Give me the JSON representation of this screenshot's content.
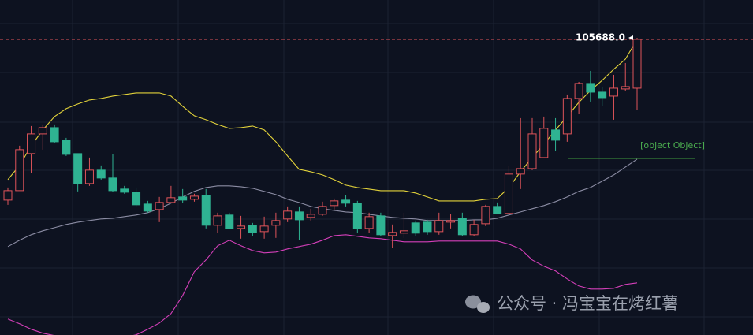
{
  "chart_data": {
    "type": "candlestick",
    "ylim": [
      99534,
      106508
    ],
    "up_color": "#e0545a",
    "down_color": "#2fb392",
    "open": [
      102342,
      102539,
      103310,
      103720,
      103851,
      103589,
      103310,
      102687,
      102966,
      102802,
      102572,
      102506,
      102260,
      102146,
      102293,
      102408,
      102359,
      102441,
      101818,
      102031,
      101752,
      101818,
      101686,
      101818,
      101949,
      102096,
      101982,
      102047,
      102228,
      102342,
      102277,
      101752,
      102014,
      101604,
      101654,
      101867,
      101883,
      101686,
      101883,
      101965,
      101621,
      101850,
      102211,
      102064,
      102884,
      102998,
      103228,
      103802,
      103720,
      104458,
      104770,
      104589,
      104507,
      104655,
      104671
    ],
    "high": [
      102605,
      103474,
      103884,
      103917,
      103917,
      103638,
      103310,
      103228,
      103064,
      103294,
      102638,
      102605,
      102326,
      102408,
      102638,
      102572,
      102474,
      102572,
      102080,
      102080,
      102014,
      101867,
      101998,
      102080,
      102211,
      102211,
      102162,
      102310,
      102375,
      102441,
      102326,
      102080,
      102080,
      101834,
      102080,
      101916,
      101932,
      102080,
      102047,
      102080,
      101932,
      102244,
      102293,
      103064,
      104048,
      104048,
      104081,
      104048,
      104540,
      104802,
      105032,
      104704,
      104950,
      105196,
      105721
    ],
    "low": [
      102244,
      102539,
      102900,
      103392,
      103523,
      103261,
      102523,
      102638,
      102769,
      102506,
      102474,
      102211,
      102080,
      101883,
      102277,
      102277,
      102310,
      101752,
      101654,
      101752,
      101539,
      101588,
      101539,
      101555,
      101883,
      101506,
      101916,
      102014,
      102146,
      102211,
      101654,
      101654,
      101588,
      101342,
      101555,
      101588,
      101621,
      101621,
      101752,
      101588,
      101588,
      101801,
      102047,
      102064,
      102572,
      102966,
      103228,
      103359,
      103556,
      104130,
      104392,
      104294,
      104015,
      104622,
      104212
    ],
    "close": [
      102539,
      103392,
      103720,
      103851,
      103556,
      103294,
      102687,
      102966,
      102802,
      102539,
      102506,
      102244,
      102113,
      102293,
      102392,
      102342,
      102424,
      101818,
      102014,
      101752,
      101801,
      101670,
      101801,
      101916,
      102113,
      101932,
      102047,
      102211,
      102326,
      102277,
      101752,
      101998,
      101621,
      101670,
      101703,
      101654,
      101686,
      101916,
      101916,
      101621,
      101834,
      102211,
      102064,
      102884,
      102998,
      103720,
      103835,
      103589,
      104458,
      104770,
      104589,
      104474,
      104671,
      104704,
      105688
    ],
    "lines": [
      {
        "color": "#e3d33a",
        "values": [
          102769,
          103064,
          103474,
          103802,
          104081,
          104245,
          104343,
          104425,
          104458,
          104507,
          104540,
          104573,
          104573,
          104573,
          104507,
          104294,
          104097,
          104015,
          103917,
          103835,
          103851,
          103884,
          103802,
          103556,
          103261,
          102982,
          102933,
          102867,
          102769,
          102654,
          102605,
          102572,
          102539,
          102539,
          102539,
          102490,
          102408,
          102326,
          102326,
          102326,
          102326,
          102359,
          102375,
          102605,
          102933,
          103228,
          103507,
          103802,
          104081,
          104376,
          104622,
          104835,
          105065,
          105278,
          105688
        ]
      },
      {
        "color": "#8b8ca3",
        "values": [
          101375,
          101506,
          101621,
          101703,
          101768,
          101834,
          101883,
          101916,
          101949,
          101965,
          101998,
          102031,
          102080,
          102162,
          102277,
          102408,
          102523,
          102605,
          102638,
          102638,
          102621,
          102588,
          102523,
          102457,
          102359,
          102293,
          102211,
          102162,
          102129,
          102096,
          102080,
          102047,
          102014,
          101982,
          101965,
          101949,
          101916,
          101916,
          101916,
          101916,
          101932,
          101932,
          101965,
          102031,
          102096,
          102162,
          102228,
          102310,
          102408,
          102523,
          102605,
          102736,
          102867,
          103031,
          103195
        ]
      },
      {
        "color": "#d43fb9",
        "values": [
          99866,
          99768,
          99653,
          99571,
          99522,
          99489,
          99472,
          99456,
          99456,
          99456,
          99489,
          99538,
          99653,
          99784,
          99981,
          100358,
          100850,
          101096,
          101391,
          101506,
          101391,
          101293,
          101244,
          101260,
          101326,
          101375,
          101424,
          101506,
          101604,
          101621,
          101588,
          101555,
          101539,
          101506,
          101473,
          101473,
          101473,
          101490,
          101490,
          101490,
          101490,
          101490,
          101490,
          101424,
          101326,
          101096,
          100965,
          100866,
          100702,
          100555,
          100489,
          100489,
          100506,
          100588,
          100621
        ]
      }
    ],
    "last_price": {
      "value": 105688,
      "label": "105688.0",
      "color": "#e0545a"
    },
    "level": {
      "value": 103209.4,
      "color": "#3e9b3e"
    },
    "watermark": "公众号 · 冯宝宝在烤红薯"
  }
}
